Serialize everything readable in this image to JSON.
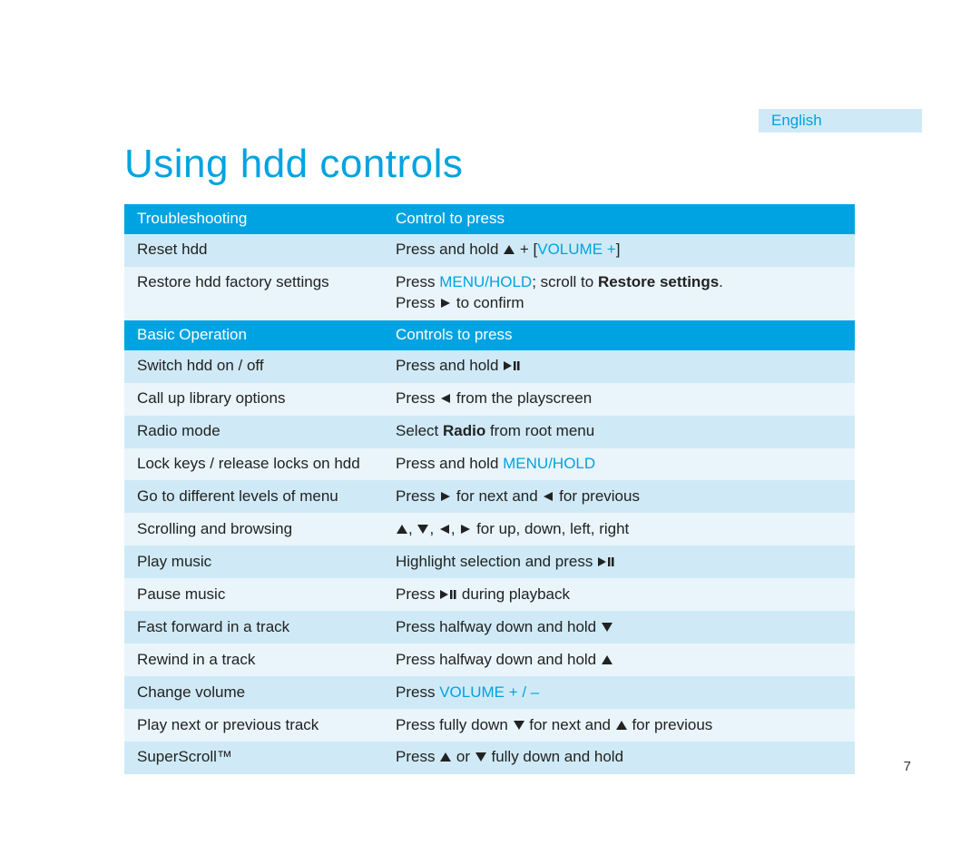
{
  "colors": {
    "accent": "#00a3e2",
    "header_bg": "#00a3e2",
    "header_text": "#ffffff",
    "row_bg_a": "#cfeaf6",
    "row_bg_b": "#e9f5fb",
    "body_text": "#222222",
    "page_bg": "#ffffff",
    "title_fontsize": 44,
    "body_fontsize": 17
  },
  "language_tab": "English",
  "title": "Using hdd controls",
  "page_number": "7",
  "icons": {
    "up": "tri-up",
    "down": "tri-down",
    "left": "tri-left",
    "right": "tri-right",
    "play": "tri-right",
    "playpause": "playpause"
  },
  "sections": [
    {
      "header": {
        "left": "Troubleshooting",
        "right": "Control to press"
      },
      "rows": [
        {
          "left": [
            {
              "t": "Reset hdd"
            }
          ],
          "right": [
            {
              "t": "Press and hold "
            },
            {
              "icon": "up"
            },
            {
              "t": " + ["
            },
            {
              "t": "VOLUME +",
              "accent": true
            },
            {
              "t": "]"
            }
          ]
        },
        {
          "left": [
            {
              "t": "Restore hdd factory settings"
            }
          ],
          "right": [
            {
              "t": "Press "
            },
            {
              "t": "MENU/HOLD",
              "accent": true
            },
            {
              "t": "; scroll to "
            },
            {
              "t": "Restore settings",
              "bold": true
            },
            {
              "t": "."
            },
            {
              "br": true
            },
            {
              "t": "Press "
            },
            {
              "icon": "play"
            },
            {
              "t": " to confirm"
            }
          ]
        }
      ]
    },
    {
      "header": {
        "left": "Basic Operation",
        "right": "Controls to press"
      },
      "rows": [
        {
          "left": [
            {
              "t": "Switch hdd on / off"
            }
          ],
          "right": [
            {
              "t": "Press and hold "
            },
            {
              "icon": "playpause"
            }
          ]
        },
        {
          "left": [
            {
              "t": "Call up library options"
            }
          ],
          "right": [
            {
              "t": "Press "
            },
            {
              "icon": "left"
            },
            {
              "t": " from the playscreen"
            }
          ]
        },
        {
          "left": [
            {
              "t": "Radio mode"
            }
          ],
          "right": [
            {
              "t": "Select "
            },
            {
              "t": "Radio",
              "bold": true
            },
            {
              "t": " from root menu"
            }
          ]
        },
        {
          "left": [
            {
              "t": "Lock keys / release locks on hdd"
            }
          ],
          "right": [
            {
              "t": "Press and hold "
            },
            {
              "t": "MENU/HOLD",
              "accent": true
            }
          ]
        },
        {
          "left": [
            {
              "t": "Go to different levels of menu"
            }
          ],
          "right": [
            {
              "t": "Press "
            },
            {
              "icon": "right"
            },
            {
              "t": " for next and "
            },
            {
              "icon": "left"
            },
            {
              "t": " for previous"
            }
          ]
        },
        {
          "left": [
            {
              "t": "Scrolling and browsing"
            }
          ],
          "right": [
            {
              "icon": "up"
            },
            {
              "t": ", "
            },
            {
              "icon": "down"
            },
            {
              "t": ", "
            },
            {
              "icon": "left"
            },
            {
              "t": ", "
            },
            {
              "icon": "right"
            },
            {
              "t": " for up, down, left, right"
            }
          ]
        },
        {
          "left": [
            {
              "t": "Play music"
            }
          ],
          "right": [
            {
              "t": "Highlight selection and press "
            },
            {
              "icon": "playpause"
            }
          ]
        },
        {
          "left": [
            {
              "t": "Pause music"
            }
          ],
          "right": [
            {
              "t": "Press "
            },
            {
              "icon": "playpause"
            },
            {
              "t": " during playback"
            }
          ]
        },
        {
          "left": [
            {
              "t": "Fast forward in a track"
            }
          ],
          "right": [
            {
              "t": "Press halfway down and hold "
            },
            {
              "icon": "down"
            }
          ]
        },
        {
          "left": [
            {
              "t": "Rewind in a track"
            }
          ],
          "right": [
            {
              "t": "Press halfway down and hold "
            },
            {
              "icon": "up"
            }
          ]
        },
        {
          "left": [
            {
              "t": "Change volume"
            }
          ],
          "right": [
            {
              "t": "Press "
            },
            {
              "t": "VOLUME + / –",
              "accent": true
            }
          ]
        },
        {
          "left": [
            {
              "t": "Play next or previous track"
            }
          ],
          "right": [
            {
              "t": "Press fully down "
            },
            {
              "icon": "down"
            },
            {
              "t": " for next and "
            },
            {
              "icon": "up"
            },
            {
              "t": " for previous"
            }
          ]
        },
        {
          "left": [
            {
              "t": "SuperScroll™"
            }
          ],
          "right": [
            {
              "t": "Press "
            },
            {
              "icon": "up"
            },
            {
              "t": " or "
            },
            {
              "icon": "down"
            },
            {
              "t": " fully down and hold"
            }
          ]
        }
      ]
    }
  ]
}
